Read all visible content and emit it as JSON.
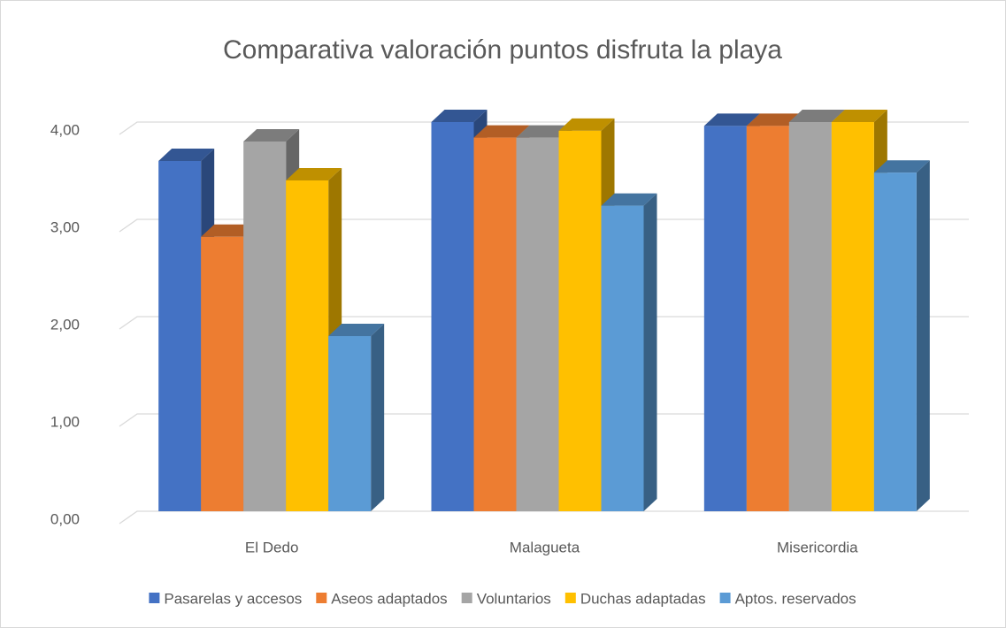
{
  "chart_data": {
    "type": "bar3d",
    "title": "Comparativa valoración puntos disfruta la playa",
    "categories": [
      "El Dedo",
      "Malagueta",
      "Misericordia"
    ],
    "series": [
      {
        "name": "Pasarelas y accesos",
        "color": "#4472c4",
        "values": [
          3.6,
          4.0,
          3.96
        ]
      },
      {
        "name": "Aseos adaptados",
        "color": "#ed7d31",
        "values": [
          2.82,
          3.84,
          3.96
        ]
      },
      {
        "name": "Voluntarios",
        "color": "#a5a5a5",
        "values": [
          3.8,
          3.84,
          4.0
        ]
      },
      {
        "name": "Duchas adaptadas",
        "color": "#ffc000",
        "values": [
          3.4,
          3.91,
          4.0
        ]
      },
      {
        "name": "Aptos. reservados",
        "color": "#5b9bd5",
        "values": [
          1.8,
          3.14,
          3.48
        ]
      }
    ],
    "ylim": [
      0,
      4
    ],
    "yticks": [
      {
        "value": 0,
        "label": "0,00"
      },
      {
        "value": 1,
        "label": "1,00"
      },
      {
        "value": 2,
        "label": "2,00"
      },
      {
        "value": 3,
        "label": "3,00"
      },
      {
        "value": 4,
        "label": "4,00"
      }
    ],
    "grid": true,
    "legend": "bottom"
  }
}
